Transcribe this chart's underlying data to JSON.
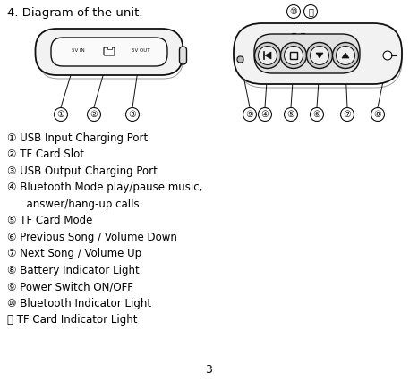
{
  "title": "4. Diagram of the unit.",
  "background_color": "#ffffff",
  "text_color": "#000000",
  "page_number": "3",
  "labels": {
    "1": "USB Input Charging Port",
    "2": "TF Card Slot",
    "3": "USB Output Charging Port",
    "4": "Bluetooth Mode play/pause music,",
    "4b": "  answer/hang-up calls.",
    "5": "TF Card Mode",
    "6": "Previous Song / Volume Down",
    "7": "Next Song / Volume Up",
    "8": "Battery Indicator Light",
    "9": "Power Switch ON/OFF",
    "10": "Bluetooth Indicator Light",
    "11": "TF Card Indicator Light"
  },
  "lc": "#111111",
  "title_fontsize": 9.5,
  "label_fontsize": 8.5,
  "circled_fontsize": 7.0
}
